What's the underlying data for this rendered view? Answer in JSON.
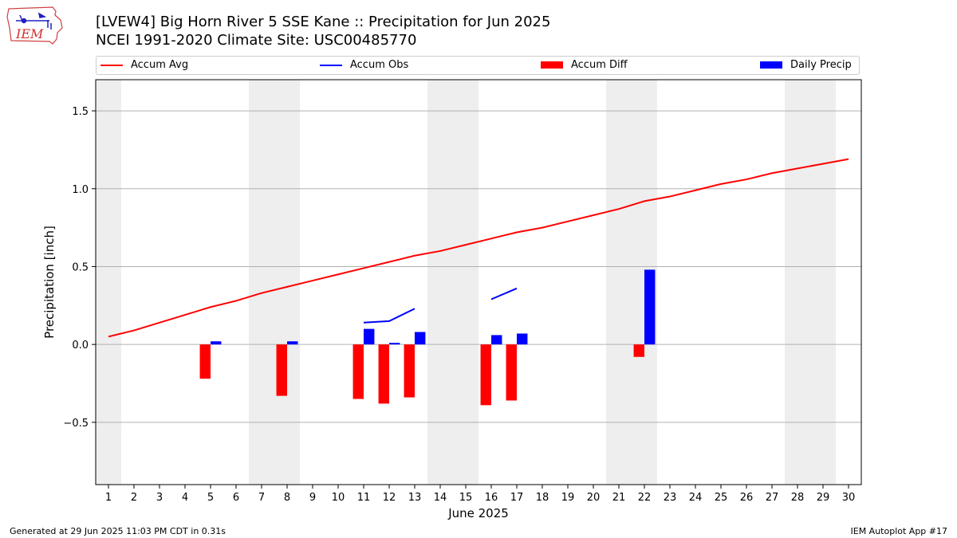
{
  "header": {
    "title_line1": "[LVEW4] Big Horn River 5 SSE Kane :: Precipitation for Jun 2025",
    "title_line2": "NCEI 1991-2020 Climate Site: USC00485770",
    "logo_text": "IEM"
  },
  "legend": {
    "items": [
      {
        "label": "Accum Avg",
        "color": "#ff0000",
        "kind": "line"
      },
      {
        "label": "Accum Obs",
        "color": "#0000ff",
        "kind": "line"
      },
      {
        "label": "Accum Diff",
        "color": "#ff0000",
        "kind": "box"
      },
      {
        "label": "Daily Precip",
        "color": "#0000ff",
        "kind": "box"
      }
    ]
  },
  "footer": {
    "left": "Generated at 29 Jun 2025 11:03 PM CDT in 0.31s",
    "right": "IEM Autoplot App #17"
  },
  "chart_data": {
    "type": "bar",
    "xlabel": "June 2025",
    "ylabel": "Precipitation [inch]",
    "xlim": [
      0.5,
      30.5
    ],
    "ylim": [
      -0.9,
      1.7
    ],
    "yticks": [
      -0.5,
      0.0,
      0.5,
      1.0,
      1.5
    ],
    "ytick_labels": [
      "−0.5",
      "0.0",
      "0.5",
      "1.0",
      "1.5"
    ],
    "x": [
      1,
      2,
      3,
      4,
      5,
      6,
      7,
      8,
      9,
      10,
      11,
      12,
      13,
      14,
      15,
      16,
      17,
      18,
      19,
      20,
      21,
      22,
      23,
      24,
      25,
      26,
      27,
      28,
      29,
      30
    ],
    "weekend_spans": [
      [
        0.5,
        1.5
      ],
      [
        6.5,
        8.5
      ],
      [
        13.5,
        15.5
      ],
      [
        20.5,
        22.5
      ],
      [
        27.5,
        29.5
      ]
    ],
    "grid": "horizontal",
    "colors": {
      "avg": "#ff0000",
      "obs": "#0000ff",
      "diff": "#ff0000",
      "daily": "#0000ff",
      "weekend": "#eeeeee"
    },
    "accum_avg": [
      0.05,
      0.09,
      0.14,
      0.19,
      0.24,
      0.28,
      0.33,
      0.37,
      0.41,
      0.45,
      0.49,
      0.53,
      0.57,
      0.6,
      0.64,
      0.68,
      0.72,
      0.75,
      0.79,
      0.83,
      0.87,
      0.92,
      0.95,
      0.99,
      1.03,
      1.06,
      1.1,
      1.13,
      1.16,
      1.19
    ],
    "accum_obs": [
      null,
      null,
      null,
      null,
      null,
      null,
      null,
      null,
      null,
      null,
      0.14,
      0.15,
      0.23,
      null,
      null,
      0.29,
      0.36,
      null,
      null,
      null,
      null,
      null,
      null,
      null,
      null,
      null,
      null,
      null,
      null,
      null
    ],
    "accum_diff": [
      {
        "day": 5,
        "value": -0.22
      },
      {
        "day": 8,
        "value": -0.33
      },
      {
        "day": 11,
        "value": -0.35
      },
      {
        "day": 12,
        "value": -0.38
      },
      {
        "day": 13,
        "value": -0.34
      },
      {
        "day": 16,
        "value": -0.39
      },
      {
        "day": 17,
        "value": -0.36
      },
      {
        "day": 22,
        "value": -0.08
      }
    ],
    "daily_precip": [
      {
        "day": 5,
        "value": 0.02
      },
      {
        "day": 8,
        "value": 0.02
      },
      {
        "day": 11,
        "value": 0.1
      },
      {
        "day": 12,
        "value": 0.01
      },
      {
        "day": 13,
        "value": 0.08
      },
      {
        "day": 16,
        "value": 0.06
      },
      {
        "day": 17,
        "value": 0.07
      },
      {
        "day": 22,
        "value": 0.48
      }
    ]
  }
}
